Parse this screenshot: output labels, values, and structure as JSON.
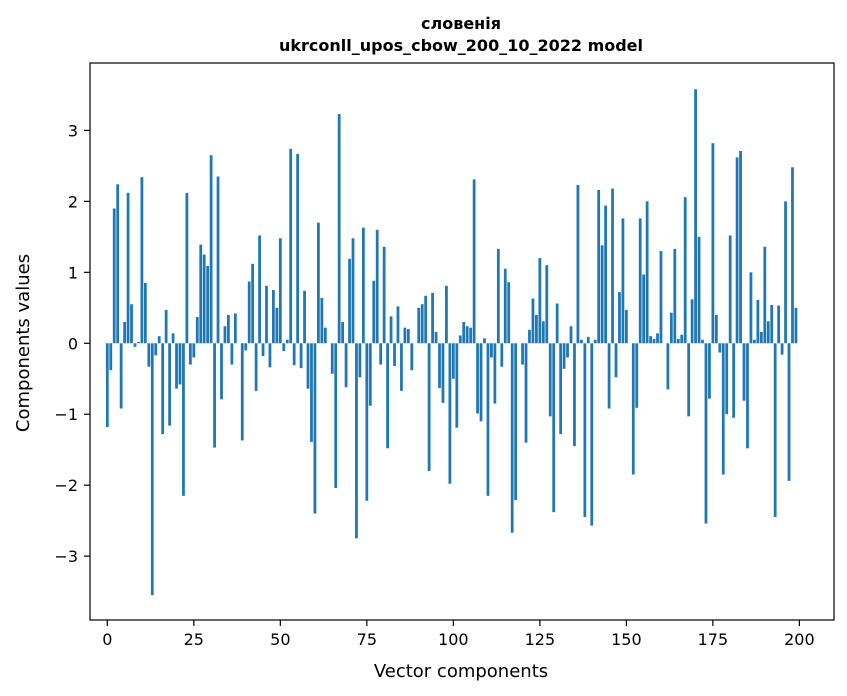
{
  "chart_data": {
    "type": "bar",
    "title_line1": "словенія",
    "title_line2": "ukrconll_upos_cbow_200_10_2022 model",
    "xlabel": "Vector components",
    "ylabel": "Components values",
    "xlim": [
      -5,
      210
    ],
    "ylim": [
      -3.9,
      3.95
    ],
    "xticks": [
      0,
      25,
      50,
      75,
      100,
      125,
      150,
      175,
      200
    ],
    "yticks": [
      -3,
      -2,
      -1,
      0,
      1,
      2,
      3
    ],
    "xtick_labels": [
      "0",
      "25",
      "50",
      "75",
      "100",
      "125",
      "150",
      "175",
      "200"
    ],
    "ytick_labels": [
      "−3",
      "−2",
      "−1",
      "0",
      "1",
      "2",
      "3"
    ],
    "grid": false,
    "bar_color": "#1f77b4",
    "x": [
      0,
      1,
      2,
      3,
      4,
      5,
      6,
      7,
      8,
      9,
      10,
      11,
      12,
      13,
      14,
      15,
      16,
      17,
      18,
      19,
      20,
      21,
      22,
      23,
      24,
      25,
      26,
      27,
      28,
      29,
      30,
      31,
      32,
      33,
      34,
      35,
      36,
      37,
      38,
      39,
      40,
      41,
      42,
      43,
      44,
      45,
      46,
      47,
      48,
      49,
      50,
      51,
      52,
      53,
      54,
      55,
      56,
      57,
      58,
      59,
      60,
      61,
      62,
      63,
      64,
      65,
      66,
      67,
      68,
      69,
      70,
      71,
      72,
      73,
      74,
      75,
      76,
      77,
      78,
      79,
      80,
      81,
      82,
      83,
      84,
      85,
      86,
      87,
      88,
      89,
      90,
      91,
      92,
      93,
      94,
      95,
      96,
      97,
      98,
      99,
      100,
      101,
      102,
      103,
      104,
      105,
      106,
      107,
      108,
      109,
      110,
      111,
      112,
      113,
      114,
      115,
      116,
      117,
      118,
      119,
      120,
      121,
      122,
      123,
      124,
      125,
      126,
      127,
      128,
      129,
      130,
      131,
      132,
      133,
      134,
      135,
      136,
      137,
      138,
      139,
      140,
      141,
      142,
      143,
      144,
      145,
      146,
      147,
      148,
      149,
      150,
      151,
      152,
      153,
      154,
      155,
      156,
      157,
      158,
      159,
      160,
      161,
      162,
      163,
      164,
      165,
      166,
      167,
      168,
      169,
      170,
      171,
      172,
      173,
      174,
      175,
      176,
      177,
      178,
      179,
      180,
      181,
      182,
      183,
      184,
      185,
      186,
      187,
      188,
      189,
      190,
      191,
      192,
      193,
      194,
      195,
      196,
      197,
      198,
      199
    ],
    "values": [
      -1.18,
      -0.38,
      1.9,
      2.24,
      -0.92,
      0.3,
      2.12,
      0.55,
      -0.05,
      0.02,
      2.34,
      0.85,
      -0.33,
      -3.55,
      -0.17,
      0.1,
      -1.28,
      0.47,
      -1.16,
      0.14,
      -0.64,
      -0.58,
      -2.15,
      2.12,
      -0.3,
      -0.2,
      0.37,
      1.39,
      1.25,
      1.09,
      2.65,
      -1.47,
      2.35,
      -0.79,
      0.24,
      0.4,
      -0.3,
      0.42,
      0.0,
      -1.37,
      -0.1,
      0.87,
      1.12,
      -0.67,
      1.52,
      -0.18,
      0.81,
      -0.34,
      0.75,
      0.5,
      1.48,
      -0.11,
      0.05,
      2.74,
      -0.31,
      2.67,
      -0.35,
      0.74,
      -0.64,
      -1.39,
      -2.4,
      1.7,
      0.64,
      0.22,
      0.0,
      -0.43,
      -2.04,
      3.23,
      0.3,
      -0.62,
      1.19,
      1.48,
      -2.75,
      -0.48,
      1.63,
      -2.22,
      -0.88,
      0.88,
      1.6,
      -0.3,
      1.36,
      -1.48,
      0.38,
      -0.32,
      0.52,
      -0.67,
      0.22,
      0.2,
      -0.38,
      0.0,
      0.5,
      0.55,
      0.67,
      -1.8,
      0.71,
      0.16,
      -0.63,
      -0.84,
      0.81,
      -1.98,
      -0.5,
      -1.19,
      0.11,
      0.3,
      0.24,
      0.22,
      2.31,
      -0.99,
      -1.1,
      0.07,
      -2.15,
      -0.2,
      -0.85,
      1.33,
      -0.33,
      1.05,
      0.86,
      -2.67,
      -2.21,
      0.0,
      -0.3,
      -1.4,
      0.19,
      0.63,
      0.4,
      1.2,
      0.31,
      1.1,
      -1.03,
      -2.38,
      0.56,
      -1.28,
      -0.36,
      -0.2,
      0.24,
      -1.45,
      2.23,
      0.05,
      -2.45,
      0.09,
      -2.57,
      0.05,
      2.16,
      1.38,
      1.94,
      -0.92,
      2.18,
      -0.48,
      0.72,
      1.76,
      0.47,
      0.0,
      -1.85,
      -0.91,
      1.76,
      0.97,
      2.0,
      0.1,
      0.06,
      0.14,
      1.3,
      0.0,
      -0.65,
      0.43,
      1.33,
      0.06,
      0.12,
      2.06,
      -1.03,
      0.62,
      3.58,
      1.5,
      0.05,
      -2.54,
      -0.78,
      2.82,
      0.4,
      -0.13,
      -1.85,
      -1.0,
      1.52,
      -1.05,
      2.62,
      2.71,
      -0.81,
      -1.48,
      1.0,
      0.05,
      0.61,
      0.16,
      1.36,
      0.31,
      0.54,
      -2.45,
      0.53,
      -0.16,
      2.0,
      -1.94,
      2.48,
      0.5
    ]
  }
}
